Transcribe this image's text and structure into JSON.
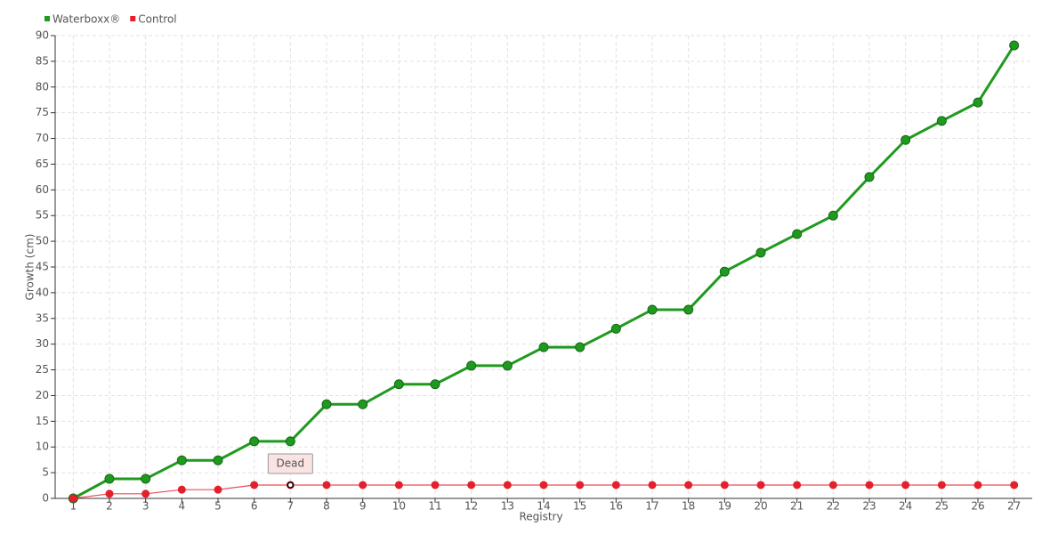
{
  "chart_data": {
    "type": "line",
    "categories": [
      "1",
      "2",
      "3",
      "4",
      "5",
      "6",
      "7",
      "8",
      "9",
      "10",
      "11",
      "12",
      "13",
      "14",
      "15",
      "16",
      "17",
      "18",
      "19",
      "20",
      "21",
      "22",
      "23",
      "24",
      "25",
      "26",
      "27"
    ],
    "series": [
      {
        "name": "Waterboxx®",
        "color": "#1f9a1f",
        "values": [
          0,
          3.8,
          3.8,
          7.4,
          7.4,
          11.1,
          11.1,
          18.3,
          18.3,
          22.2,
          22.2,
          25.8,
          25.8,
          29.4,
          29.4,
          33.0,
          36.7,
          36.7,
          44.1,
          47.8,
          51.4,
          55.0,
          62.5,
          69.7,
          73.4,
          77.0,
          88.1
        ]
      },
      {
        "name": "Control",
        "color": "#e3202b",
        "values": [
          0,
          0.9,
          0.9,
          1.7,
          1.7,
          2.6,
          2.6,
          2.6,
          2.6,
          2.6,
          2.6,
          2.6,
          2.6,
          2.6,
          2.6,
          2.6,
          2.6,
          2.6,
          2.6,
          2.6,
          2.6,
          2.6,
          2.6,
          2.6,
          2.6,
          2.6,
          2.6
        ]
      }
    ],
    "x_label": "Registry",
    "y_label": "Growth (cm)",
    "ylim": [
      0,
      90
    ],
    "yticks": [
      0,
      5,
      10,
      15,
      20,
      25,
      30,
      35,
      40,
      45,
      50,
      55,
      60,
      65,
      70,
      75,
      80,
      85,
      90
    ],
    "grid": true,
    "legend": "top-left",
    "annotations": [
      {
        "text": "Dead",
        "x": "7"
      }
    ]
  }
}
